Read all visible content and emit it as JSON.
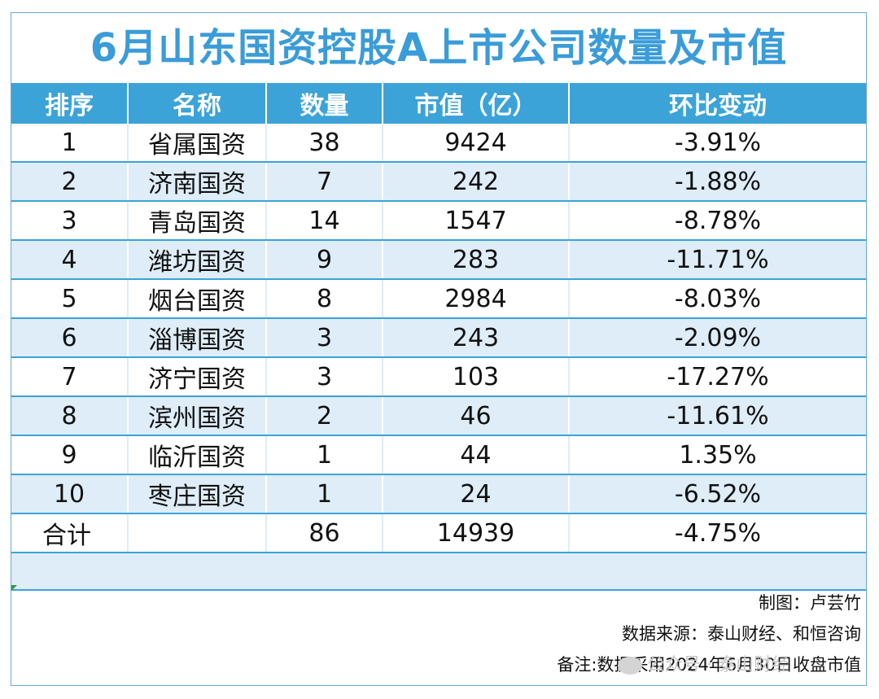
{
  "title": "6月山东国资控股A上市公司数量及市值",
  "columns": [
    "排序",
    "名称",
    "数量",
    "市值（亿）",
    "环比变动"
  ],
  "rows": [
    {
      "rank": "1",
      "name": "省属国资",
      "count": "38",
      "value": "9424",
      "change": "-3.91%"
    },
    {
      "rank": "2",
      "name": "济南国资",
      "count": "7",
      "value": "242",
      "change": "-1.88%"
    },
    {
      "rank": "3",
      "name": "青岛国资",
      "count": "14",
      "value": "1547",
      "change": "-8.78%"
    },
    {
      "rank": "4",
      "name": "潍坊国资",
      "count": "9",
      "value": "283",
      "change": "-11.71%"
    },
    {
      "rank": "5",
      "name": "烟台国资",
      "count": "8",
      "value": "2984",
      "change": "-8.03%"
    },
    {
      "rank": "6",
      "name": "淄博国资",
      "count": "3",
      "value": "243",
      "change": "-2.09%"
    },
    {
      "rank": "7",
      "name": "济宁国资",
      "count": "3",
      "value": "103",
      "change": "-17.27%"
    },
    {
      "rank": "8",
      "name": "滨州国资",
      "count": "2",
      "value": "46",
      "change": "-11.61%"
    },
    {
      "rank": "9",
      "name": "临沂国资",
      "count": "1",
      "value": "44",
      "change": "1.35%"
    },
    {
      "rank": "10",
      "name": "枣庄国资",
      "count": "1",
      "value": "24",
      "change": "-6.52%"
    }
  ],
  "total": {
    "label": "合计",
    "count": "86",
    "value": "14939",
    "change": "-4.75%"
  },
  "footer": {
    "chart_by": "制图：卢芸竹",
    "source": "数据来源：泰山财经、和恒咨询",
    "note": "备注:数据采用2024年6月30日收盘市值"
  },
  "watermark": "公众号 · 泰山财经",
  "colors": {
    "accent": "#3ba3d8",
    "title": "#3a9cd8",
    "stripe": "#deedf7"
  }
}
